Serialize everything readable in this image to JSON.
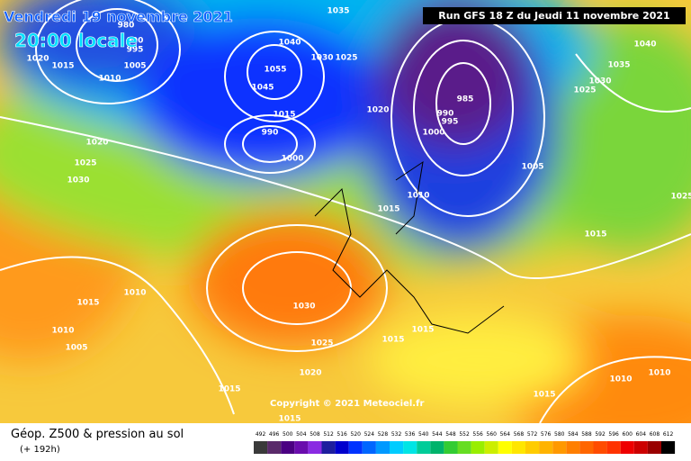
{
  "header": {
    "date": "Vendredi 19 novembre 2021",
    "time": "20:00 locale",
    "run": "Run GFS 18 Z du Jeudi 11 novembre 2021"
  },
  "map": {
    "isobar_labels": [
      980,
      990,
      995,
      1005,
      1010,
      1015,
      1020,
      1035,
      1040,
      1030,
      1025,
      1055,
      1045,
      1015,
      990,
      1000,
      1020,
      985,
      990,
      995,
      1000,
      1005,
      1010,
      1015,
      1040,
      1035,
      1030,
      1025,
      1020,
      1025,
      1030,
      1010,
      1015,
      1010,
      1005,
      1030,
      1025,
      1015,
      1015,
      1020,
      1015,
      1015,
      1015,
      1010,
      1010,
      1015,
      1025
    ],
    "copyright": "Copyright © 2021 Meteociel.fr"
  },
  "footer": {
    "title": "Géop. Z500 & pression au sol",
    "lead": "(+ 192h)",
    "scale": [
      {
        "label": "492",
        "color": "#3a3a3a"
      },
      {
        "label": "496",
        "color": "#5a2a6a"
      },
      {
        "label": "500",
        "color": "#4b0082"
      },
      {
        "label": "504",
        "color": "#6a0dad"
      },
      {
        "label": "508",
        "color": "#8a2be2"
      },
      {
        "label": "512",
        "color": "#1e1e9e"
      },
      {
        "label": "516",
        "color": "#0000cd"
      },
      {
        "label": "520",
        "color": "#0033ff"
      },
      {
        "label": "524",
        "color": "#0066ff"
      },
      {
        "label": "528",
        "color": "#0099ff"
      },
      {
        "label": "532",
        "color": "#00ccff"
      },
      {
        "label": "536",
        "color": "#00e5e5"
      },
      {
        "label": "540",
        "color": "#00cc99"
      },
      {
        "label": "544",
        "color": "#00b36b"
      },
      {
        "label": "548",
        "color": "#33cc33"
      },
      {
        "label": "552",
        "color": "#66dd22"
      },
      {
        "label": "556",
        "color": "#99ee00"
      },
      {
        "label": "560",
        "color": "#ccee00"
      },
      {
        "label": "564",
        "color": "#ffff00"
      },
      {
        "label": "568",
        "color": "#ffe600"
      },
      {
        "label": "572",
        "color": "#ffcc00"
      },
      {
        "label": "576",
        "color": "#ffb300"
      },
      {
        "label": "580",
        "color": "#ff9900"
      },
      {
        "label": "584",
        "color": "#ff7f00"
      },
      {
        "label": "588",
        "color": "#ff6600"
      },
      {
        "label": "592",
        "color": "#ff4c00"
      },
      {
        "label": "596",
        "color": "#ff3300"
      },
      {
        "label": "600",
        "color": "#ee0000"
      },
      {
        "label": "604",
        "color": "#cc0000"
      },
      {
        "label": "608",
        "color": "#990000"
      },
      {
        "label": "612",
        "color": "#000000"
      }
    ]
  }
}
